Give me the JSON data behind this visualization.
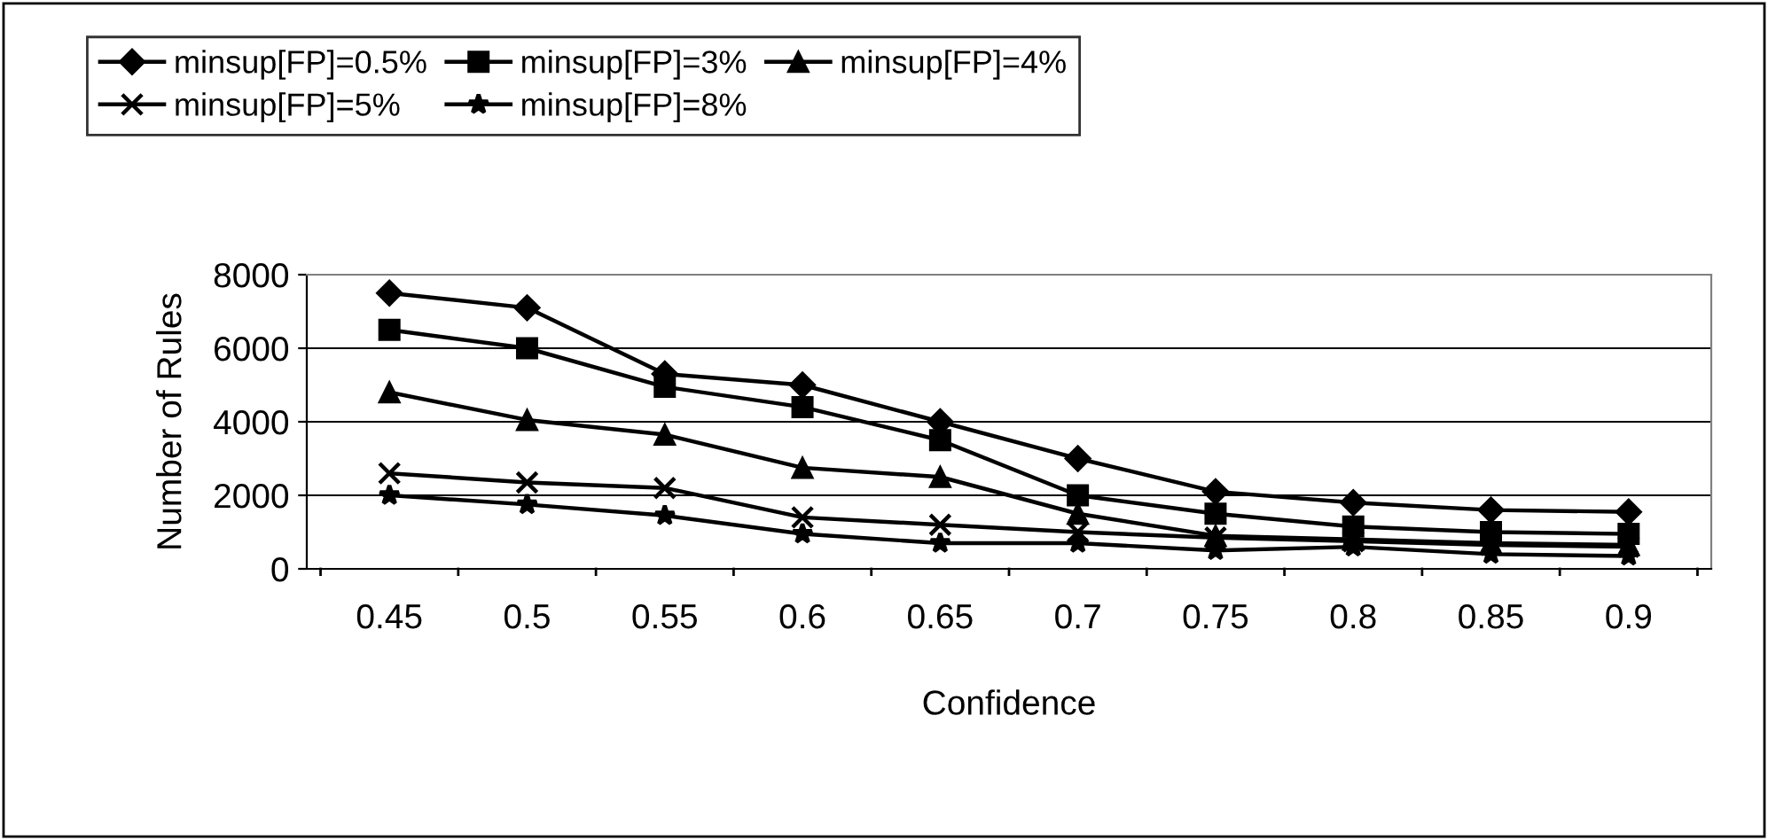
{
  "chart_data": {
    "type": "line",
    "xlabel": "Confidence",
    "ylabel": "Number of Rules",
    "categories": [
      "0.45",
      "0.5",
      "0.55",
      "0.6",
      "0.65",
      "0.7",
      "0.75",
      "0.8",
      "0.85",
      "0.9"
    ],
    "series": [
      {
        "name": "minsup[FP]=0.5%",
        "color": "#000000",
        "marker": "diamond",
        "values": [
          7500,
          7100,
          5300,
          5000,
          4000,
          3000,
          2100,
          1800,
          1600,
          1550
        ]
      },
      {
        "name": "minsup[FP]=3%",
        "color": "#000000",
        "marker": "square",
        "values": [
          6500,
          6000,
          4950,
          4400,
          3500,
          2000,
          1500,
          1150,
          1000,
          950
        ]
      },
      {
        "name": "minsup[FP]=4%",
        "color": "#000000",
        "marker": "triangle",
        "values": [
          4800,
          4050,
          3650,
          2750,
          2500,
          1500,
          900,
          800,
          700,
          650
        ]
      },
      {
        "name": "minsup[FP]=5%",
        "color": "#000000",
        "marker": "cross",
        "values": [
          2600,
          2350,
          2200,
          1400,
          1200,
          1000,
          850,
          750,
          650,
          600
        ]
      },
      {
        "name": "minsup[FP]=8%",
        "color": "#000000",
        "marker": "star",
        "values": [
          2000,
          1750,
          1450,
          950,
          700,
          700,
          500,
          600,
          400,
          350
        ]
      }
    ],
    "ylim": [
      0,
      8000
    ],
    "yticks": [
      0,
      2000,
      4000,
      6000,
      8000
    ],
    "grid": "y",
    "legend": "top",
    "line_style": "solid"
  }
}
